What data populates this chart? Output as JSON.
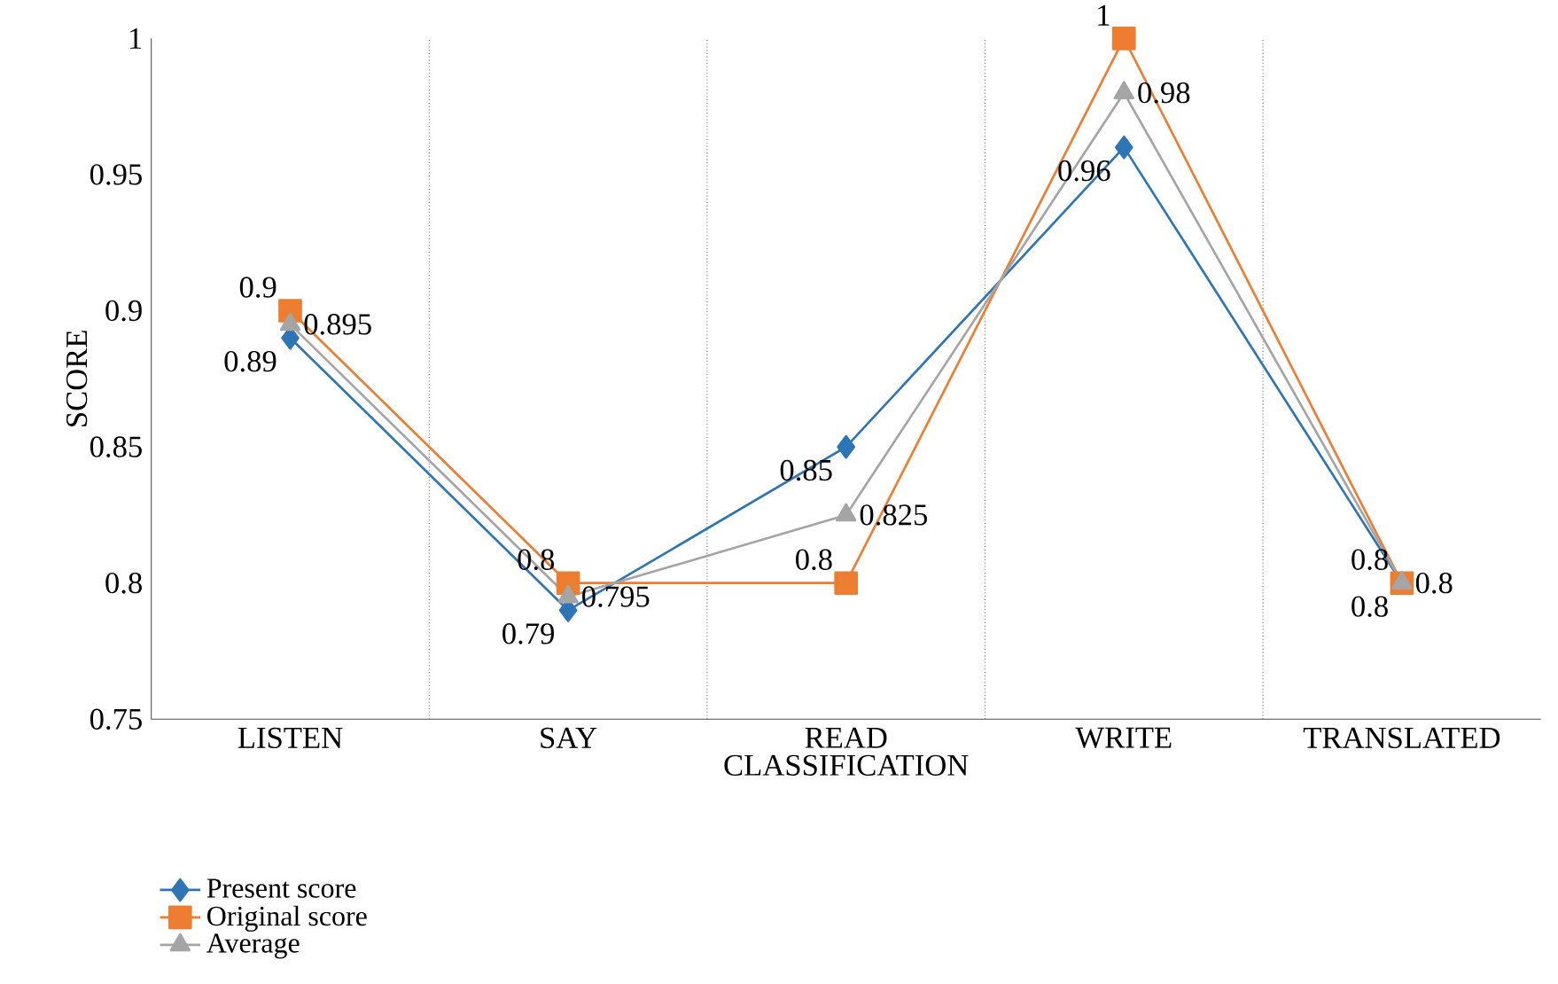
{
  "chart_data": {
    "type": "line",
    "xlabel": "CLASSIFICATION",
    "ylabel": "SCORE",
    "categories": [
      "LISTEN",
      "SAY",
      "READ",
      "WRITE",
      "TRANSLATED"
    ],
    "series": [
      {
        "name": "Present score",
        "color": "#2e75b6",
        "marker": "diamond",
        "values": [
          0.89,
          0.79,
          0.85,
          0.96,
          0.8
        ]
      },
      {
        "name": "Original score",
        "color": "#ed7d31",
        "marker": "square",
        "values": [
          0.9,
          0.8,
          0.8,
          1,
          0.8
        ]
      },
      {
        "name": "Average",
        "color": "#a5a5a5",
        "marker": "triangle",
        "values": [
          0.895,
          0.795,
          0.825,
          0.98,
          0.8
        ]
      }
    ],
    "ylim": [
      0.75,
      1
    ],
    "yticks": [
      0.75,
      0.8,
      0.85,
      0.9,
      0.95,
      1
    ],
    "grid": "x",
    "legend": "bottom",
    "data_labels": true,
    "line_style": "solid"
  }
}
